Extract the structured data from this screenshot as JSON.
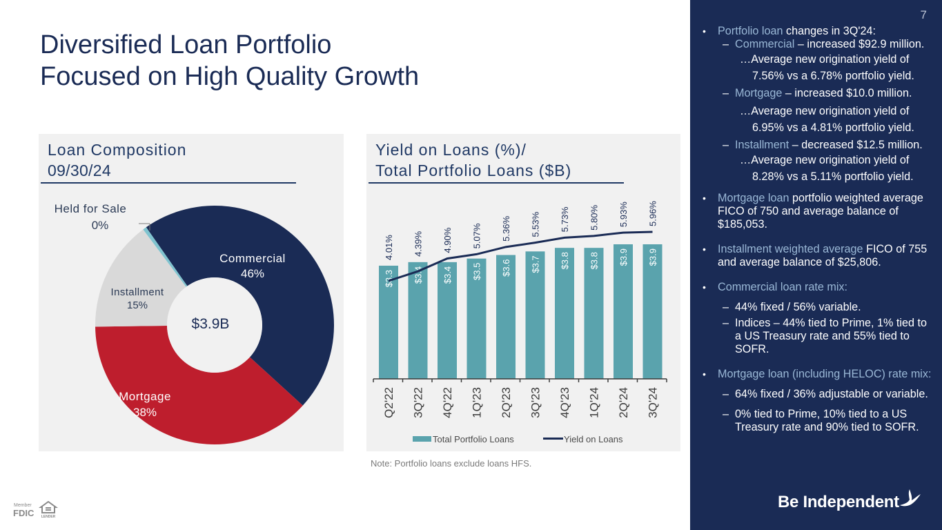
{
  "page": {
    "title_line1": "Diversified Loan Portfolio",
    "title_line2": "Focused on High Quality Growth",
    "page_number": "7",
    "note": "Note: Portfolio loans exclude loans HFS.",
    "brand": "Be Independent",
    "fdic_member": "Member",
    "fdic": "FDIC",
    "equal_housing": "EQUAL HOUSING",
    "lender": "LENDER"
  },
  "colors": {
    "navy": "#1a2b55",
    "red": "#be1e2d",
    "light_gray": "#d9d9d9",
    "teal": "#5aa3ad",
    "hfs": "#7fc3cf",
    "highlight": "#9ab8d6"
  },
  "left_panel": {
    "heading_line1": "Loan Composition",
    "heading_line2": "09/30/24"
  },
  "right_panel": {
    "heading_line1": "Yield on Loans (%)/",
    "heading_line2": "Total Portfolio Loans ($B)"
  },
  "chart_data": [
    {
      "type": "pie",
      "title": "Loan Composition 09/30/24",
      "center_label": "$3.9B",
      "slices": [
        {
          "label": "Commercial",
          "pct_label": "46%",
          "value": 46.5,
          "color": "#1a2b55"
        },
        {
          "label": "Mortgage",
          "pct_label": "38%",
          "value": 38.0,
          "color": "#be1e2d"
        },
        {
          "label": "Installment",
          "pct_label": "15%",
          "value": 15.0,
          "color": "#d9d9d9"
        },
        {
          "label": "Held for Sale",
          "pct_label": "0%",
          "value": 0.5,
          "color": "#7fc3cf"
        }
      ]
    },
    {
      "type": "bar",
      "title": "Yield on Loans (%)/ Total Portfolio Loans ($B)",
      "categories": [
        "Q2'22",
        "3Q'22",
        "4Q'22",
        "1Q'23",
        "2Q'23",
        "3Q'23",
        "4Q'23",
        "1Q'24",
        "2Q'24",
        "3Q'24"
      ],
      "series": [
        {
          "name": "Total Portfolio Loans",
          "kind": "bar",
          "color": "#5aa3ad",
          "values": [
            3.3,
            3.4,
            3.4,
            3.5,
            3.6,
            3.7,
            3.8,
            3.8,
            3.9,
            3.9
          ],
          "labels": [
            "$3.3",
            "$3.4",
            "$3.4",
            "$3.5",
            "$3.6",
            "$3.7",
            "$3.8",
            "$3.8",
            "$3.9",
            "$3.9"
          ]
        },
        {
          "name": "Yield on Loans",
          "kind": "line",
          "color": "#1a2b55",
          "values": [
            4.01,
            4.39,
            4.9,
            5.07,
            5.36,
            5.53,
            5.73,
            5.8,
            5.93,
            5.96
          ],
          "labels": [
            "4.01%",
            "4.39%",
            "4.90%",
            "5.07%",
            "5.36%",
            "5.53%",
            "5.73%",
            "5.80%",
            "5.93%",
            "5.96%"
          ]
        }
      ],
      "legend": "bottom",
      "grid": false
    }
  ],
  "sidebar": {
    "b1_hl": "Portfolio loan",
    "b1_text": " changes in 3Q'24:",
    "commercial_hl": "Commercial",
    "commercial_text": " – increased $92.9 million.",
    "commercial_yield": "…Average new origination yield of 7.56% vs a 6.78% portfolio yield.",
    "mortgage_hl": "Mortgage",
    "mortgage_text": " – increased $10.0 million.",
    "mortgage_yield": "…Average new origination yield of 6.95% vs a 4.81% portfolio yield.",
    "installment_hl": "Installment",
    "installment_text": " – decreased $12.5 million.",
    "installment_yield": "…Average new origination yield of 8.28% vs a 5.11% portfolio yield.",
    "b2_hl": "Mortgage loan",
    "b2_text": " portfolio weighted average FICO of 750 and average balance of $185,053.",
    "b3_hl": "Installment weighted average",
    "b3_text": " FICO of 755 and average balance of $25,806.",
    "b4_hl": "Commercial loan rate mix:",
    "b4_sub1": "44% fixed / 56% variable.",
    "b4_sub2": "Indices –  44% tied to Prime, 1% tied to a US Treasury rate and 55% tied to SOFR.",
    "b5_hl": "Mortgage loan (including HELOC) rate mix:",
    "b5_sub1": "64% fixed / 36% adjustable or variable.",
    "b5_sub2": "0% tied to Prime, 10% tied to a US Treasury rate and 90% tied to SOFR."
  }
}
